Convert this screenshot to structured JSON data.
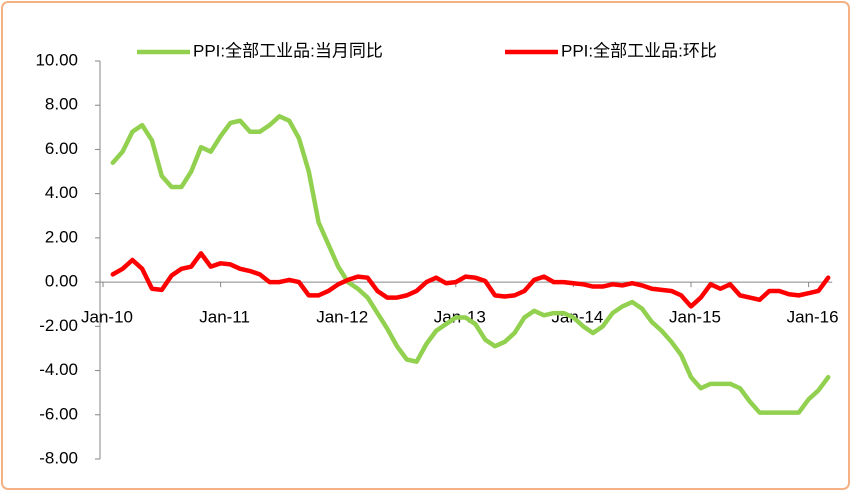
{
  "chart_data": {
    "type": "line",
    "categories": [
      "Jan-10",
      null,
      null,
      null,
      null,
      null,
      null,
      null,
      null,
      null,
      null,
      null,
      "Jan-11",
      null,
      null,
      null,
      null,
      null,
      null,
      null,
      null,
      null,
      null,
      null,
      "Jan-12",
      null,
      null,
      null,
      null,
      null,
      null,
      null,
      null,
      null,
      null,
      null,
      "Jan-13",
      null,
      null,
      null,
      null,
      null,
      null,
      null,
      null,
      null,
      null,
      null,
      "Jan-14",
      null,
      null,
      null,
      null,
      null,
      null,
      null,
      null,
      null,
      null,
      null,
      "Jan-15",
      null,
      null,
      null,
      null,
      null,
      null,
      null,
      null,
      null,
      null,
      null,
      "Jan-16",
      null,
      null
    ],
    "series": [
      {
        "name": "PPI:全部工业品:当月同比",
        "color": "#92d050",
        "values": [
          null,
          5.4,
          5.9,
          6.8,
          7.1,
          6.4,
          4.8,
          4.3,
          4.3,
          5.0,
          6.1,
          5.9,
          6.6,
          7.2,
          7.3,
          6.8,
          6.8,
          7.1,
          7.5,
          7.3,
          6.5,
          5.0,
          2.7,
          1.7,
          0.7,
          0.0,
          -0.3,
          -0.7,
          -1.4,
          -2.1,
          -2.9,
          -3.5,
          -3.6,
          -2.8,
          -2.2,
          -1.9,
          -1.6,
          -1.6,
          -1.9,
          -2.6,
          -2.9,
          -2.7,
          -2.3,
          -1.6,
          -1.3,
          -1.5,
          -1.4,
          -1.4,
          -1.6,
          -2.0,
          -2.3,
          -2.0,
          -1.4,
          -1.1,
          -0.9,
          -1.2,
          -1.8,
          -2.2,
          -2.7,
          -3.3,
          -4.3,
          -4.8,
          -4.6,
          -4.6,
          -4.6,
          -4.8,
          -5.4,
          -5.9,
          -5.9,
          -5.9,
          -5.9,
          -5.9,
          -5.3,
          -4.9,
          -4.3
        ]
      },
      {
        "name": "PPI:全部工业品:环比",
        "color": "#ff0000",
        "values": [
          null,
          0.35,
          0.6,
          1.0,
          0.6,
          -0.3,
          -0.35,
          0.3,
          0.6,
          0.7,
          1.3,
          0.7,
          0.85,
          0.8,
          0.6,
          0.5,
          0.35,
          0.0,
          0.0,
          0.1,
          0.0,
          -0.6,
          -0.6,
          -0.4,
          -0.1,
          0.1,
          0.25,
          0.2,
          -0.4,
          -0.7,
          -0.7,
          -0.6,
          -0.4,
          0.0,
          0.2,
          -0.05,
          0.0,
          0.25,
          0.2,
          0.05,
          -0.6,
          -0.65,
          -0.6,
          -0.4,
          0.1,
          0.25,
          0.0,
          0.0,
          -0.05,
          -0.1,
          -0.2,
          -0.2,
          -0.1,
          -0.15,
          -0.05,
          -0.15,
          -0.3,
          -0.35,
          -0.4,
          -0.6,
          -1.1,
          -0.7,
          -0.1,
          -0.3,
          -0.1,
          -0.6,
          -0.7,
          -0.8,
          -0.4,
          -0.4,
          -0.55,
          -0.6,
          -0.5,
          -0.4,
          0.2
        ]
      }
    ],
    "ylim": [
      -8,
      10
    ],
    "yticks": [
      {
        "value": -8,
        "label": "-8.00"
      },
      {
        "value": -6,
        "label": "-6.00"
      },
      {
        "value": -4,
        "label": "-4.00"
      },
      {
        "value": -2,
        "label": "-2.00"
      },
      {
        "value": 0,
        "label": "0.00"
      },
      {
        "value": 2,
        "label": "2.00"
      },
      {
        "value": 4,
        "label": "4.00"
      },
      {
        "value": 6,
        "label": "6.00"
      },
      {
        "value": 8,
        "label": "8.00"
      },
      {
        "value": 10,
        "label": "10.00"
      }
    ],
    "grid": false
  }
}
